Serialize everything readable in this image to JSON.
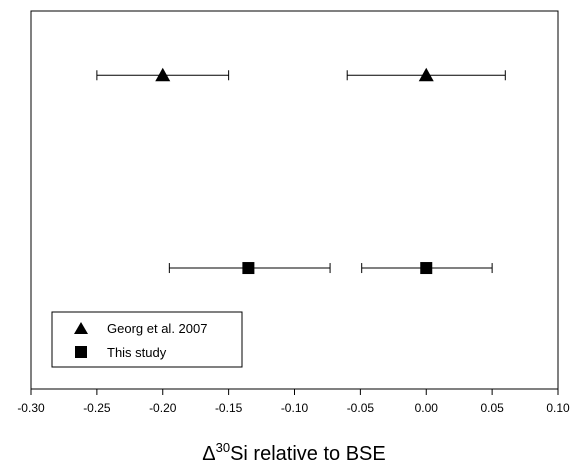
{
  "chart_data": {
    "type": "scatter",
    "title": "",
    "xlabel": {
      "symbol": "Δ",
      "superscript": "30",
      "text": "Si relative to BSE"
    },
    "ylabel": "",
    "xlim": [
      -0.3,
      0.1
    ],
    "x_ticks": [
      -0.3,
      -0.25,
      -0.2,
      -0.15,
      -0.1,
      -0.05,
      0.0,
      0.05,
      0.1
    ],
    "x_tick_labels": [
      "-0.30",
      "-0.25",
      "-0.20",
      "-0.15",
      "-0.10",
      "-0.05",
      "0.00",
      "0.05",
      "0.10"
    ],
    "ylim": [
      0,
      1
    ],
    "y_ticks_shown": false,
    "grid": false,
    "legend_position": "bottom-left",
    "series": [
      {
        "name": "Georg et al. 2007",
        "marker": "triangle",
        "color": "#000000",
        "points": [
          {
            "x": -0.2,
            "y": 0.83,
            "err_low": -0.25,
            "err_high": -0.15
          },
          {
            "x": 0.0,
            "y": 0.83,
            "err_low": -0.06,
            "err_high": 0.06
          }
        ]
      },
      {
        "name": "This study",
        "marker": "square",
        "color": "#000000",
        "points": [
          {
            "x": -0.135,
            "y": 0.32,
            "err_low": -0.195,
            "err_high": -0.073
          },
          {
            "x": 0.0,
            "y": 0.32,
            "err_low": -0.049,
            "err_high": 0.05
          }
        ]
      }
    ]
  }
}
